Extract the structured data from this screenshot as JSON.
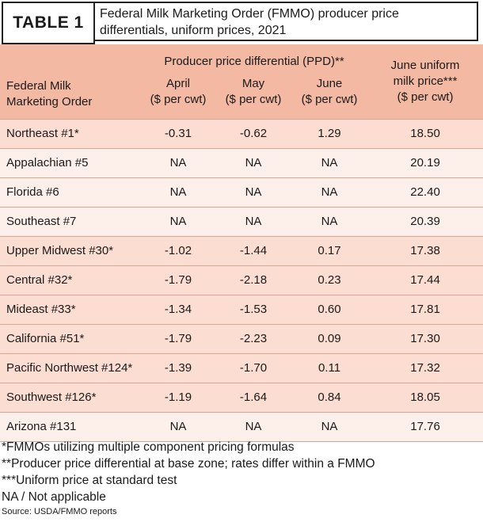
{
  "header": {
    "label": "TABLE 1",
    "title": "Federal Milk Marketing Order (FMMO) producer price differentials, uniform prices, 2021"
  },
  "table": {
    "row_header": "Federal Milk Marketing Order",
    "group_header": "Producer price differential (PPD)**",
    "columns": [
      {
        "name": "April",
        "unit": "($ per cwt)"
      },
      {
        "name": "May",
        "unit": "($ per cwt)"
      },
      {
        "name": "June",
        "unit": "($ per cwt)"
      },
      {
        "name": "June uniform milk price***",
        "unit": "($ per cwt)"
      }
    ],
    "rows": [
      [
        "Northeast #1*",
        "-0.31",
        "-0.62",
        "1.29",
        "18.50"
      ],
      [
        "Appalachian #5",
        "NA",
        "NA",
        "NA",
        "20.19"
      ],
      [
        "Florida #6",
        "NA",
        "NA",
        "NA",
        "22.40"
      ],
      [
        "Southeast #7",
        "NA",
        "NA",
        "NA",
        "20.39"
      ],
      [
        "Upper Midwest #30*",
        "-1.02",
        "-1.44",
        "0.17",
        "17.38"
      ],
      [
        "Central #32*",
        "-1.79",
        "-2.18",
        "0.23",
        "17.44"
      ],
      [
        "Mideast #33*",
        "-1.34",
        "-1.53",
        "0.60",
        "17.81"
      ],
      [
        "California #51*",
        "-1.79",
        "-2.23",
        "0.09",
        "17.30"
      ],
      [
        "Pacific Northwest #124*",
        "-1.39",
        "-1.70",
        "0.11",
        "17.32"
      ],
      [
        "Southwest #126*",
        "-1.19",
        "-1.64",
        "0.84",
        "18.05"
      ],
      [
        "Arizona #131",
        "NA",
        "NA",
        "NA",
        "17.76"
      ]
    ]
  },
  "footnotes": [
    "*FMMOs utilizing multiple component pricing formulas",
    "**Producer price differential at base zone; rates differ within a FMMO",
    "***Uniform price at standard test",
    "NA / Not applicable"
  ],
  "source": "Source: USDA/FMMO reports"
}
